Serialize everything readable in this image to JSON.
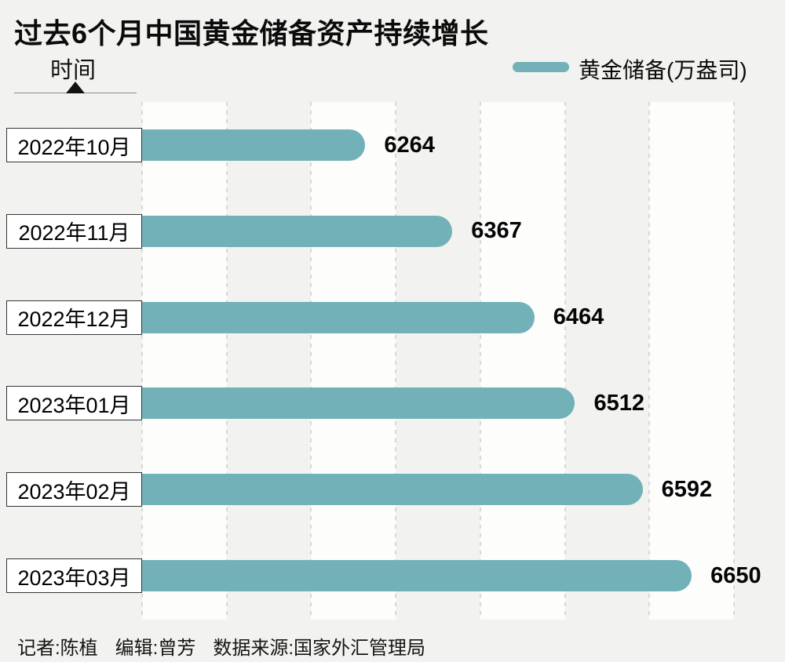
{
  "title": "过去6个月中国黄金储备资产持续增长",
  "y_axis_label": "时间",
  "legend": {
    "label": "黄金储备(万盎司)"
  },
  "colors": {
    "bar": "#72b1b7",
    "page_bg": "#f2f2f0",
    "band": "#fdfdfc",
    "gridline": "#d8d8d6",
    "text": "#0b0b0b"
  },
  "chart_data": {
    "type": "bar",
    "orientation": "horizontal",
    "title": "过去6个月中国黄金储备资产持续增长",
    "categories": [
      "2022年10月",
      "2022年11月",
      "2022年12月",
      "2023年01月",
      "2023年02月",
      "2023年03月"
    ],
    "values": [
      6264,
      6367,
      6464,
      6512,
      6592,
      6650
    ],
    "series_name": "黄金储备(万盎司)",
    "xlabel": "黄金储备(万盎司)",
    "ylabel": "时间",
    "xlim": [
      6000,
      6700
    ],
    "grid_step": 100,
    "grid": "vertical-dashed",
    "legend_position": "top-right",
    "value_labels": "end-of-bar"
  },
  "footer": {
    "items": [
      "记者:陈植",
      "编辑:曾芳",
      "数据来源:国家外汇管理局"
    ]
  }
}
